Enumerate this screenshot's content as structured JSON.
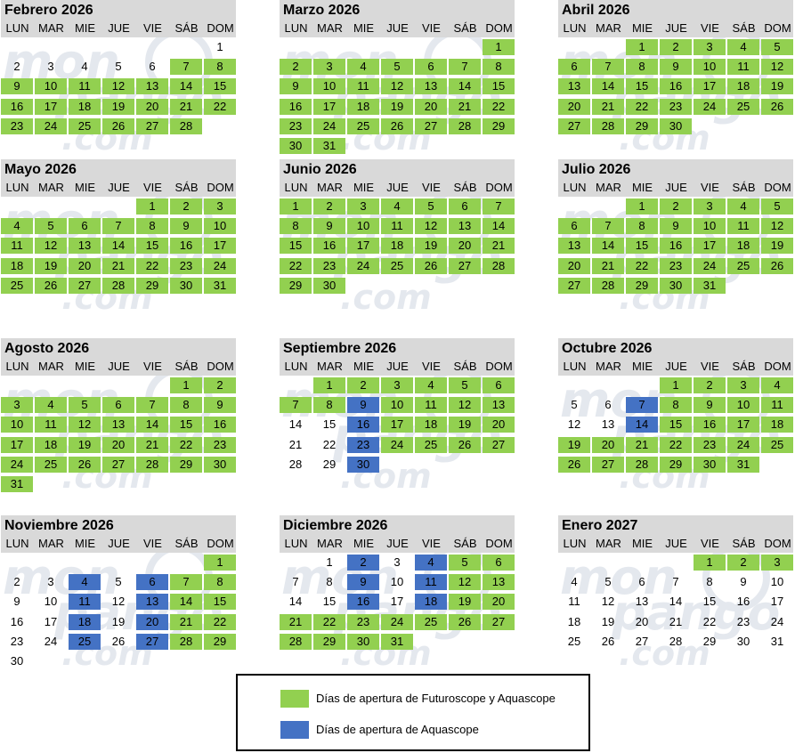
{
  "weekday_labels": [
    "LUN",
    "MAR",
    "MIE",
    "JUE",
    "VIE",
    "SÁB",
    "DOM"
  ],
  "watermark_text": [
    "mon",
    "pango",
    ".com"
  ],
  "colors": {
    "both": "#92d050",
    "aquascope": "#4472c4",
    "header_bg": "#d9d9d9"
  },
  "months": [
    {
      "title": "Febrero 2026",
      "days": 28,
      "start": 6,
      "both": [
        7,
        8,
        9,
        10,
        11,
        12,
        13,
        14,
        15,
        16,
        17,
        18,
        19,
        20,
        21,
        22,
        23,
        24,
        25,
        26,
        27,
        28
      ],
      "aquascope": []
    },
    {
      "title": "Marzo 2026",
      "days": 31,
      "start": 6,
      "both": [
        1,
        2,
        3,
        4,
        5,
        6,
        7,
        8,
        9,
        10,
        11,
        12,
        13,
        14,
        15,
        16,
        17,
        18,
        19,
        20,
        21,
        22,
        23,
        24,
        25,
        26,
        27,
        28,
        29,
        30,
        31
      ],
      "aquascope": []
    },
    {
      "title": "Abril 2026",
      "days": 30,
      "start": 2,
      "both": [
        1,
        2,
        3,
        4,
        5,
        6,
        7,
        8,
        9,
        10,
        11,
        12,
        13,
        14,
        15,
        16,
        17,
        18,
        19,
        20,
        21,
        22,
        23,
        24,
        25,
        26,
        27,
        28,
        29,
        30
      ],
      "aquascope": []
    },
    {
      "title": "Mayo 2026",
      "days": 31,
      "start": 4,
      "both": [
        1,
        2,
        3,
        4,
        5,
        6,
        7,
        8,
        9,
        10,
        11,
        12,
        13,
        14,
        15,
        16,
        17,
        18,
        19,
        20,
        21,
        22,
        23,
        24,
        25,
        26,
        27,
        28,
        29,
        30,
        31
      ],
      "aquascope": []
    },
    {
      "title": "Junio 2026",
      "days": 30,
      "start": 0,
      "both": [
        1,
        2,
        3,
        4,
        5,
        6,
        7,
        8,
        9,
        10,
        11,
        12,
        13,
        14,
        15,
        16,
        17,
        18,
        19,
        20,
        21,
        22,
        23,
        24,
        25,
        26,
        27,
        28,
        29,
        30
      ],
      "aquascope": []
    },
    {
      "title": "Julio 2026",
      "days": 31,
      "start": 2,
      "both": [
        1,
        2,
        3,
        4,
        5,
        6,
        7,
        8,
        9,
        10,
        11,
        12,
        13,
        14,
        15,
        16,
        17,
        18,
        19,
        20,
        21,
        22,
        23,
        24,
        25,
        26,
        27,
        28,
        29,
        30,
        31
      ],
      "aquascope": []
    },
    {
      "title": "Agosto 2026",
      "days": 31,
      "start": 5,
      "both": [
        1,
        2,
        3,
        4,
        5,
        6,
        7,
        8,
        9,
        10,
        11,
        12,
        13,
        14,
        15,
        16,
        17,
        18,
        19,
        20,
        21,
        22,
        23,
        24,
        25,
        26,
        27,
        28,
        29,
        30,
        31
      ],
      "aquascope": []
    },
    {
      "title": "Septiembre 2026",
      "days": 30,
      "start": 1,
      "both": [
        1,
        2,
        3,
        4,
        5,
        6,
        7,
        8,
        10,
        11,
        12,
        13,
        17,
        18,
        19,
        20,
        24,
        25,
        26,
        27
      ],
      "aquascope": [
        9,
        16,
        23,
        30
      ]
    },
    {
      "title": "Octubre 2026",
      "days": 31,
      "start": 3,
      "both": [
        1,
        2,
        3,
        4,
        8,
        9,
        10,
        11,
        15,
        16,
        17,
        18,
        19,
        20,
        21,
        22,
        23,
        24,
        25,
        26,
        27,
        28,
        29,
        30,
        31
      ],
      "aquascope": [
        7,
        14
      ]
    },
    {
      "title": "Noviembre 2026",
      "days": 30,
      "start": 6,
      "both": [
        1,
        7,
        8,
        14,
        15,
        21,
        22,
        28,
        29
      ],
      "aquascope": [
        4,
        6,
        11,
        13,
        18,
        20,
        25,
        27
      ]
    },
    {
      "title": "Diciembre 2026",
      "days": 31,
      "start": 1,
      "both": [
        5,
        6,
        12,
        13,
        19,
        20,
        21,
        22,
        23,
        24,
        25,
        26,
        27,
        28,
        29,
        30,
        31
      ],
      "aquascope": [
        2,
        4,
        9,
        11,
        16,
        18
      ]
    },
    {
      "title": "Enero 2027",
      "days": 31,
      "start": 4,
      "both": [
        1,
        2,
        3
      ],
      "aquascope": []
    }
  ],
  "legend": {
    "both_label": "Días de apertura de Futuroscope y Aquascope",
    "aquascope_label": "Días de apertura de Aquascope"
  }
}
